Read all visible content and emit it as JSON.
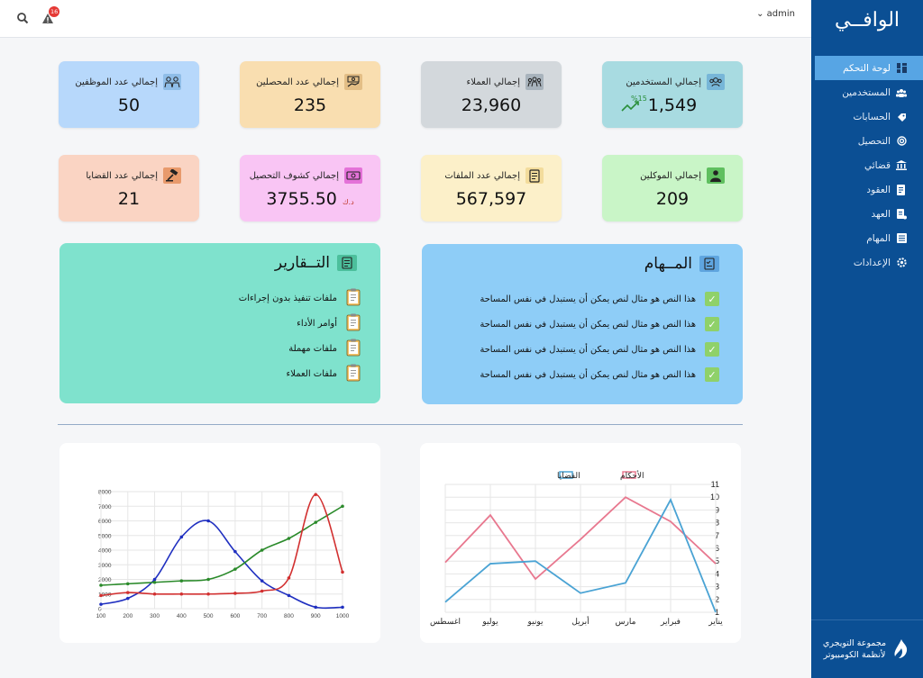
{
  "sidebar": {
    "brand": "الوافــي",
    "items": [
      {
        "label": "لوحة التحكم",
        "icon": "dashboard-icon",
        "active": true
      },
      {
        "label": "المستخدمين",
        "icon": "users-icon"
      },
      {
        "label": "الحسابات",
        "icon": "accounts-icon"
      },
      {
        "label": "التحصيل",
        "icon": "collection-icon"
      },
      {
        "label": "قضائي",
        "icon": "courthouse-icon"
      },
      {
        "label": "العقود",
        "icon": "contract-icon"
      },
      {
        "label": "العهد",
        "icon": "custody-icon"
      },
      {
        "label": "المهام",
        "icon": "tasks-icon"
      },
      {
        "label": "الإعدادات",
        "icon": "settings-icon"
      }
    ],
    "footer": {
      "line1": "مجموعة التويجري",
      "line2": "لأنظمة الكومبيوتر",
      "logo_icon": "company-logo-icon"
    }
  },
  "topbar": {
    "user": "admin",
    "notifications": "16"
  },
  "stats": [
    {
      "title": "إجمالي المستخدمين",
      "value": "1,549",
      "icon": "users-group-icon",
      "color": "#a8dbe1",
      "trend": "%15"
    },
    {
      "title": "إجمالي العملاء",
      "value": "23,960",
      "icon": "clients-icon",
      "color": "#d3d8dc"
    },
    {
      "title": "إجمالي عدد المحصلين",
      "value": "235",
      "icon": "collectors-icon",
      "color": "#f9deb0"
    },
    {
      "title": "إجمالي عدد الموظفين",
      "value": "50",
      "icon": "employees-icon",
      "color": "#b7d8fb"
    },
    {
      "title": "إجمالي الموكلين",
      "value": "209",
      "icon": "client-person-icon",
      "color": "#c9f5c7"
    },
    {
      "title": "إجمالي عدد الملفات",
      "value": "567,597",
      "icon": "files-icon",
      "color": "#fcf0c9"
    },
    {
      "title": "إجمالي كشوف التحصيل",
      "value": "3755.50",
      "unit": "د.ك",
      "icon": "money-icon",
      "color": "#f9c5f4"
    },
    {
      "title": "إجمالي عدد القضايا",
      "value": "21",
      "icon": "gavel-icon",
      "color": "#fad4c3"
    }
  ],
  "reports": {
    "title": "التــقارير",
    "items": [
      "ملفات تنفيذ بدون إجراءات",
      "أوامر الأداء",
      "ملفات مهملة",
      "ملفات العملاء"
    ]
  },
  "tasks": {
    "title": "المــهام",
    "items": [
      "هذا النص هو مثال لنص يمكن أن يستبدل في نفس المساحة",
      "هذا النص هو مثال لنص يمكن أن يستبدل في نفس المساحة",
      "هذا النص هو مثال لنص يمكن أن يستبدل في نفس المساحة",
      "هذا النص هو مثال لنص يمكن أن يستبدل في نفس المساحة"
    ]
  },
  "chart_data": [
    {
      "type": "line",
      "categories": [
        "يناير",
        "فبراير",
        "مارس",
        "أبريل",
        "يونيو",
        "يوليو",
        "اغسطس"
      ],
      "ylim": [
        1,
        11
      ],
      "yticks": [
        1,
        2,
        3,
        4,
        5,
        6,
        7,
        8,
        9,
        10,
        11
      ],
      "legend_position": "top",
      "grid": true,
      "series": [
        {
          "name": "الأحكام",
          "color": "#e8788f",
          "values": [
            4.8,
            8.1,
            10.0,
            6.7,
            3.6,
            8.6,
            4.9
          ]
        },
        {
          "name": "القضايا",
          "color": "#4aa3d4",
          "values": [
            1.0,
            9.8,
            3.3,
            2.5,
            5.0,
            4.8,
            1.8
          ]
        }
      ]
    },
    {
      "type": "line",
      "x": [
        100,
        200,
        300,
        400,
        500,
        600,
        700,
        800,
        900,
        1000
      ],
      "ylim": [
        0,
        8000
      ],
      "yticks": [
        0,
        1000,
        2000,
        3000,
        4000,
        5000,
        6000,
        7000,
        8000
      ],
      "grid": true,
      "series": [
        {
          "color": "#1f2fc0",
          "values": [
            300,
            700,
            2000,
            4900,
            6000,
            3900,
            1900,
            900,
            100,
            100
          ]
        },
        {
          "color": "#2a8a2a",
          "values": [
            1600,
            1700,
            1800,
            1900,
            2000,
            2700,
            4000,
            4800,
            5900,
            7000
          ]
        },
        {
          "color": "#d23030",
          "values": [
            900,
            1100,
            1000,
            1000,
            1000,
            1050,
            1200,
            2100,
            7800,
            2500
          ]
        }
      ]
    }
  ]
}
